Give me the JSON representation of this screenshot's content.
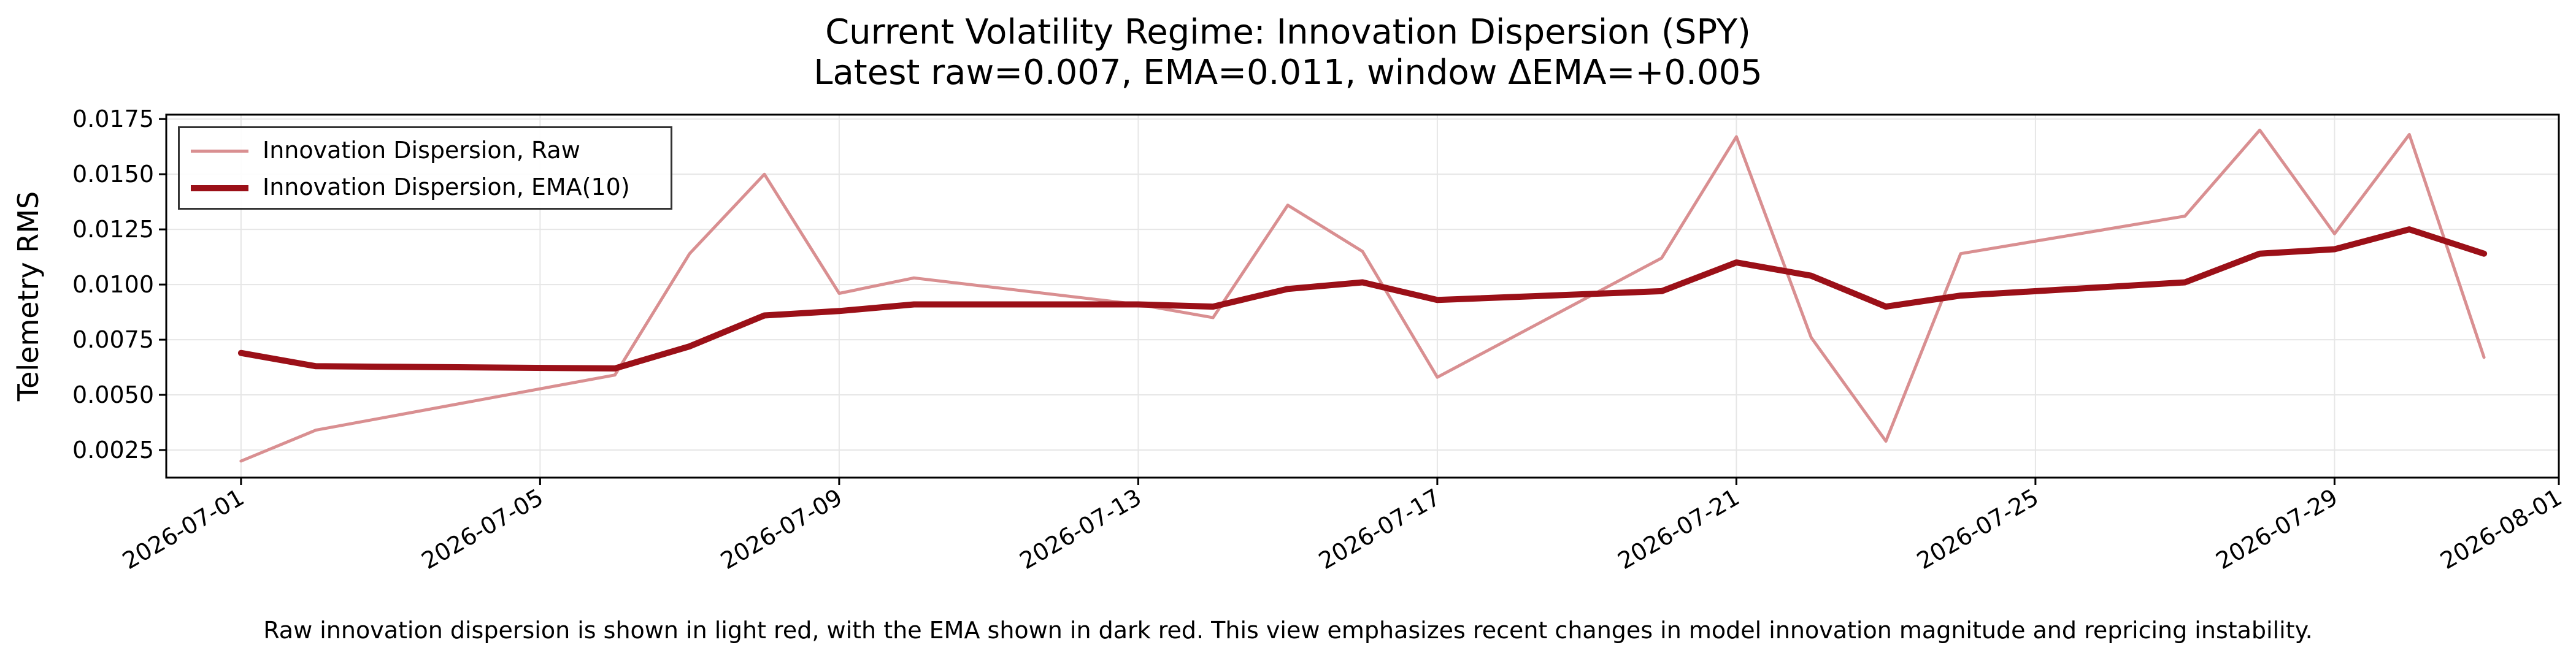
{
  "title": "Current Volatility Regime: Innovation Dispersion (SPY)",
  "subtitle": "Latest raw=0.007, EMA=0.011, window ΔEMA=+0.005",
  "caption": "Raw innovation dispersion is shown in light red, with the EMA shown in dark red. This view emphasizes recent changes in model innovation magnitude and repricing instability.",
  "colors": {
    "raw": "#d98f91",
    "ema": "#9b1018",
    "grid": "#e6e6e6",
    "axis": "#000000"
  },
  "chart_data": {
    "type": "line",
    "title": "Current Volatility Regime: Innovation Dispersion (SPY)",
    "subtitle": "Latest raw=0.007, EMA=0.011, window ΔEMA=+0.005",
    "xlabel": "",
    "ylabel": "Telemetry RMS",
    "x_type": "date",
    "xlim": [
      "2026-06-30",
      "2026-08-01"
    ],
    "ylim": [
      0.00125,
      0.0177
    ],
    "grid": true,
    "legend_position": "upper left",
    "x_ticks": [
      "2026-07-01",
      "2026-07-05",
      "2026-07-09",
      "2026-07-13",
      "2026-07-17",
      "2026-07-21",
      "2026-07-25",
      "2026-07-29",
      "2026-08-01"
    ],
    "y_ticks": [
      "0.0025",
      "0.0050",
      "0.0075",
      "0.0100",
      "0.0125",
      "0.0150",
      "0.0175"
    ],
    "x": [
      "2026-07-01",
      "2026-07-02",
      "2026-07-06",
      "2026-07-07",
      "2026-07-08",
      "2026-07-09",
      "2026-07-10",
      "2026-07-13",
      "2026-07-14",
      "2026-07-15",
      "2026-07-16",
      "2026-07-17",
      "2026-07-20",
      "2026-07-21",
      "2026-07-22",
      "2026-07-23",
      "2026-07-24",
      "2026-07-27",
      "2026-07-28",
      "2026-07-29",
      "2026-07-30",
      "2026-07-31"
    ],
    "series": [
      {
        "name": "Innovation Dispersion, Raw",
        "color": "#d98f91",
        "values": [
          0.002,
          0.0034,
          0.0059,
          0.0114,
          0.015,
          0.0096,
          0.0103,
          0.0091,
          0.0085,
          0.0136,
          0.0115,
          0.0058,
          0.0112,
          0.0167,
          0.0076,
          0.0029,
          0.0114,
          0.0131,
          0.017,
          0.0123,
          0.0168,
          0.0067
        ]
      },
      {
        "name": "Innovation Dispersion, EMA(10)",
        "color": "#9b1018",
        "values": [
          0.0069,
          0.0063,
          0.0062,
          0.0072,
          0.0086,
          0.0088,
          0.0091,
          0.0091,
          0.009,
          0.0098,
          0.0101,
          0.0093,
          0.0097,
          0.011,
          0.0104,
          0.009,
          0.0095,
          0.0101,
          0.0114,
          0.0116,
          0.0125,
          0.0114
        ]
      }
    ]
  }
}
